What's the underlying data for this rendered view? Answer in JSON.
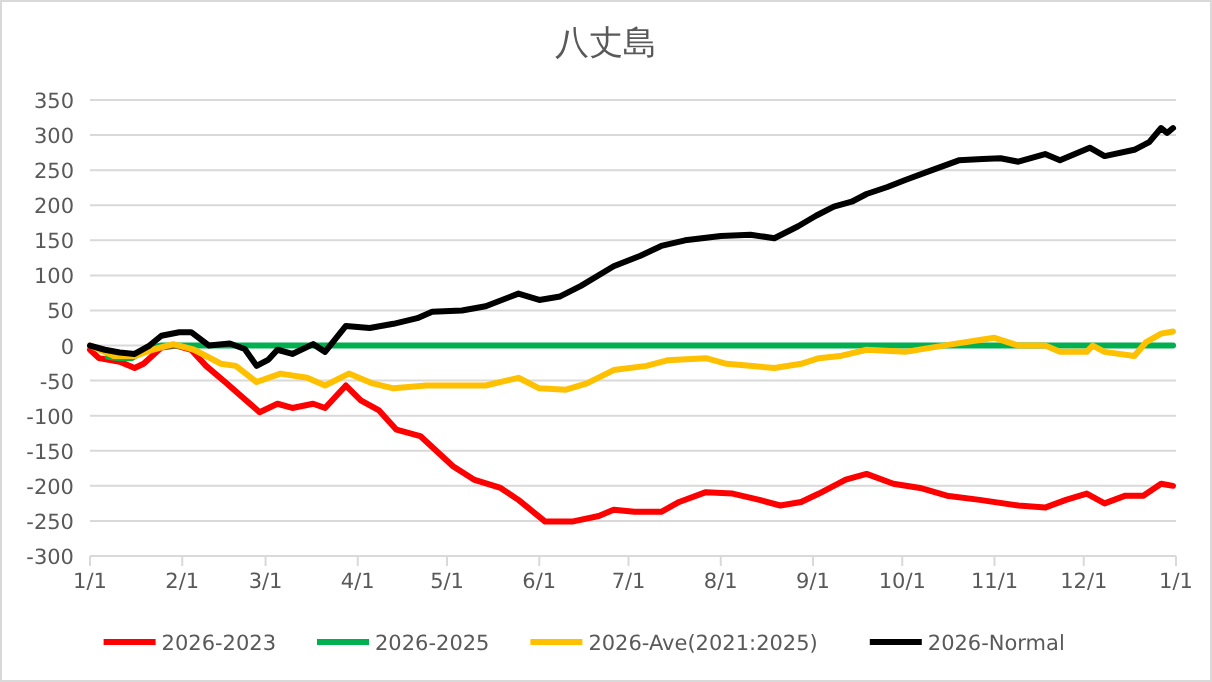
{
  "chart_data": {
    "type": "line",
    "title": "八丈島",
    "xlim": [
      "2026-01-01",
      "2027-01-01"
    ],
    "ylim": [
      -300,
      350
    ],
    "xticks": [
      {
        "value": "2026-01-01",
        "label": "1/1"
      },
      {
        "value": "2026-02-01",
        "label": "2/1"
      },
      {
        "value": "2026-03-01",
        "label": "3/1"
      },
      {
        "value": "2026-04-01",
        "label": "4/1"
      },
      {
        "value": "2026-05-01",
        "label": "5/1"
      },
      {
        "value": "2026-06-01",
        "label": "6/1"
      },
      {
        "value": "2026-07-01",
        "label": "7/1"
      },
      {
        "value": "2026-08-01",
        "label": "8/1"
      },
      {
        "value": "2026-09-01",
        "label": "9/1"
      },
      {
        "value": "2026-10-01",
        "label": "10/1"
      },
      {
        "value": "2026-11-01",
        "label": "11/1"
      },
      {
        "value": "2026-12-01",
        "label": "12/1"
      },
      {
        "value": "2027-01-01",
        "label": "1/1"
      }
    ],
    "yticks": [
      -300,
      -250,
      -200,
      -150,
      -100,
      -50,
      0,
      50,
      100,
      150,
      200,
      250,
      300,
      350
    ],
    "grid": "y",
    "legend": "bottom",
    "series": [
      {
        "name": "2026-2023",
        "color": "#ff0000",
        "x": [
          "2026-01-01",
          "2026-01-04",
          "2026-01-11",
          "2026-01-16",
          "2026-01-19",
          "2026-01-25",
          "2026-01-30",
          "2026-02-04",
          "2026-02-09",
          "2026-02-16",
          "2026-02-20",
          "2026-02-27",
          "2026-03-05",
          "2026-03-10",
          "2026-03-17",
          "2026-03-21",
          "2026-03-28",
          "2026-04-02",
          "2026-04-08",
          "2026-04-14",
          "2026-04-22",
          "2026-05-03",
          "2026-05-10",
          "2026-05-19",
          "2026-05-25",
          "2026-06-03",
          "2026-06-12",
          "2026-06-21",
          "2026-06-26",
          "2026-07-03",
          "2026-07-12",
          "2026-07-18",
          "2026-07-27",
          "2026-08-05",
          "2026-08-14",
          "2026-08-21",
          "2026-08-28",
          "2026-09-03",
          "2026-09-12",
          "2026-09-19",
          "2026-09-28",
          "2026-10-07",
          "2026-10-16",
          "2026-10-27",
          "2026-11-09",
          "2026-11-18",
          "2026-11-25",
          "2026-12-02",
          "2026-12-08",
          "2026-12-15",
          "2026-12-21",
          "2026-12-27",
          "2026-12-31"
        ],
        "values": [
          -6,
          -18,
          -23,
          -32,
          -26,
          -3,
          0,
          -6,
          -29,
          -54,
          -69,
          -95,
          -83,
          -89,
          -83,
          -89,
          -57,
          -78,
          -92,
          -120,
          -129,
          -172,
          -191,
          -203,
          -220,
          -251,
          -251,
          -243,
          -234,
          -237,
          -237,
          -223,
          -209,
          -211,
          -220,
          -228,
          -223,
          -211,
          -191,
          -183,
          -197,
          -203,
          -214,
          -220,
          -228,
          -231,
          -220,
          -211,
          -225,
          -214,
          -214,
          -197,
          -200
        ]
      },
      {
        "name": "2026-2025",
        "color": "#00b050",
        "x": [
          "2026-01-07",
          "2026-01-11",
          "2026-01-15",
          "2026-01-21",
          "2026-01-25",
          "2026-12-31"
        ],
        "values": [
          -16,
          -18,
          -18,
          -3,
          0,
          0
        ]
      },
      {
        "name": "2026-Ave(2021:2025)",
        "color": "#ffc000",
        "x": [
          "2026-01-01",
          "2026-01-09",
          "2026-01-16",
          "2026-01-22",
          "2026-01-29",
          "2026-02-05",
          "2026-02-14",
          "2026-02-19",
          "2026-02-26",
          "2026-03-06",
          "2026-03-15",
          "2026-03-21",
          "2026-03-29",
          "2026-04-06",
          "2026-04-13",
          "2026-04-24",
          "2026-05-03",
          "2026-05-14",
          "2026-05-25",
          "2026-06-01",
          "2026-06-10",
          "2026-06-17",
          "2026-06-26",
          "2026-07-07",
          "2026-07-14",
          "2026-07-27",
          "2026-08-03",
          "2026-08-19",
          "2026-08-28",
          "2026-09-03",
          "2026-09-10",
          "2026-09-19",
          "2026-10-02",
          "2026-10-18",
          "2026-10-27",
          "2026-11-01",
          "2026-11-09",
          "2026-11-18",
          "2026-11-23",
          "2026-12-02",
          "2026-12-04",
          "2026-12-08",
          "2026-12-18",
          "2026-12-22",
          "2026-12-27",
          "2026-12-31"
        ],
        "values": [
          0,
          -15,
          -15,
          -6,
          2,
          -6,
          -26,
          -29,
          -52,
          -40,
          -46,
          -57,
          -40,
          -54,
          -61,
          -57,
          -57,
          -57,
          -46,
          -61,
          -63,
          -54,
          -35,
          -29,
          -21,
          -18,
          -26,
          -32,
          -26,
          -18,
          -15,
          -6,
          -9,
          2,
          8,
          11,
          0,
          0,
          -9,
          -9,
          0,
          -9,
          -15,
          5,
          17,
          20
        ]
      },
      {
        "name": "2026-Normal",
        "color": "#000000",
        "x": [
          "2026-01-01",
          "2026-01-06",
          "2026-01-11",
          "2026-01-16",
          "2026-01-21",
          "2026-01-25",
          "2026-01-31",
          "2026-02-04",
          "2026-02-10",
          "2026-02-17",
          "2026-02-22",
          "2026-02-26",
          "2026-03-02",
          "2026-03-05",
          "2026-03-10",
          "2026-03-17",
          "2026-03-21",
          "2026-03-28",
          "2026-04-05",
          "2026-04-13",
          "2026-04-21",
          "2026-04-26",
          "2026-05-06",
          "2026-05-14",
          "2026-05-25",
          "2026-06-01",
          "2026-06-08",
          "2026-06-15",
          "2026-06-26",
          "2026-07-05",
          "2026-07-12",
          "2026-07-20",
          "2026-08-01",
          "2026-08-11",
          "2026-08-19",
          "2026-08-27",
          "2026-09-02",
          "2026-09-08",
          "2026-09-14",
          "2026-09-19",
          "2026-09-26",
          "2026-10-02",
          "2026-10-11",
          "2026-10-20",
          "2026-10-28",
          "2026-11-03",
          "2026-11-09",
          "2026-11-18",
          "2026-11-23",
          "2026-12-03",
          "2026-12-08",
          "2026-12-18",
          "2026-12-23",
          "2026-12-27",
          "2026-12-29",
          "2026-12-31"
        ],
        "values": [
          0,
          -6,
          -10,
          -12,
          0,
          14,
          19,
          19,
          0,
          3,
          -5,
          -29,
          -20,
          -6,
          -12,
          2,
          -9,
          28,
          25,
          31,
          39,
          48,
          50,
          56,
          74,
          65,
          70,
          85,
          113,
          128,
          142,
          150,
          156,
          158,
          153,
          170,
          185,
          198,
          205,
          216,
          226,
          236,
          250,
          264,
          266,
          267,
          262,
          273,
          264,
          282,
          270,
          279,
          290,
          310,
          303,
          310
        ]
      }
    ]
  }
}
